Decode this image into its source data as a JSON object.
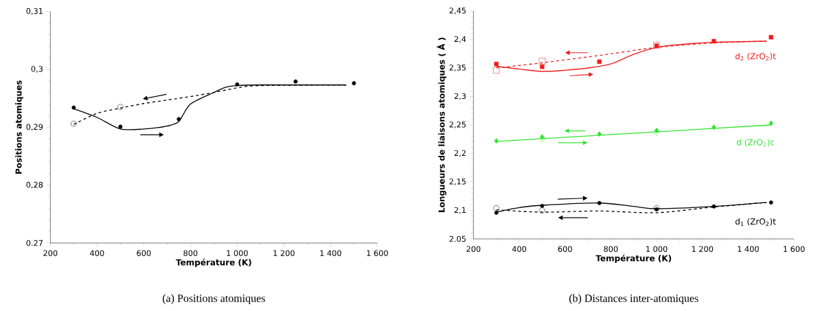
{
  "chart_data": [
    {
      "type": "line",
      "xlabel": "Température (K)",
      "ylabel": "Positions atomiques",
      "xlim": [
        200,
        1600
      ],
      "ylim": [
        0.27,
        0.31
      ],
      "xticks": [
        200,
        400,
        600,
        800,
        {
          "value": 1000,
          "label": "1 000"
        },
        {
          "value": 1200,
          "label": "1 200"
        },
        {
          "value": 1400,
          "label": "1 400"
        },
        {
          "value": 1600,
          "label": "1 600"
        }
      ],
      "yticks": [
        {
          "value": 0.27,
          "label": "0.27"
        },
        {
          "value": 0.28,
          "label": "0,28"
        },
        {
          "value": 0.29,
          "label": "0,29"
        },
        {
          "value": 0.3,
          "label": "0,3"
        },
        {
          "value": 0.31,
          "label": "0,31"
        }
      ],
      "annotations": [
        "(a) Positions atomiques"
      ],
      "series": [
        {
          "type": "scatter",
          "color": "#000000",
          "marker": "circle",
          "x": [
            300,
            500
          ],
          "values": [
            0.2906,
            0.2935
          ]
        },
        {
          "type": "scatter",
          "color": "#000000",
          "marker": "circle",
          "x": [
            300,
            500,
            750,
            1000,
            1250,
            1500
          ],
          "values": [
            0.2934,
            0.2901,
            0.2914,
            0.2974,
            0.2979,
            0.2976
          ]
        },
        {
          "color": "#000000",
          "line_style": "solid",
          "x": [
            300,
            400,
            500,
            600,
            700,
            750,
            800,
            900,
            950,
            1000,
            1100,
            1467
          ],
          "values": [
            0.2932,
            0.2917,
            0.2897,
            0.2897,
            0.2902,
            0.291,
            0.294,
            0.296,
            0.2969,
            0.2972,
            0.2973,
            0.2973
          ]
        },
        {
          "color": "#000000",
          "line_style": "dashed",
          "x": [
            300,
            400,
            500,
            600,
            700,
            800,
            900,
            1000,
            1100,
            1467
          ],
          "values": [
            0.2905,
            0.2924,
            0.2933,
            0.2941,
            0.2947,
            0.2953,
            0.296,
            0.2968,
            0.2972,
            0.2973
          ]
        }
      ]
    },
    {
      "type": "line",
      "xlabel": "Température (K)",
      "ylabel": "Longueurs de liaisons atomiques ( Å )",
      "xlim": [
        200,
        1600
      ],
      "ylim": [
        2.05,
        2.45
      ],
      "xticks": [
        200,
        400,
        600,
        800,
        {
          "value": 1000,
          "label": "1 000"
        },
        {
          "value": 1200,
          "label": "1 200"
        },
        {
          "value": 1400,
          "label": "1 400"
        },
        {
          "value": 1600,
          "label": "1 600"
        }
      ],
      "yticks": [
        {
          "value": 2.05,
          "label": "2.05"
        },
        {
          "value": 2.1,
          "label": "2,1"
        },
        {
          "value": 2.15,
          "label": "2,15"
        },
        {
          "value": 2.2,
          "label": "2,2"
        },
        {
          "value": 2.25,
          "label": "2,25"
        },
        {
          "value": 2.3,
          "label": "2,3"
        },
        {
          "value": 2.35,
          "label": "2,35"
        },
        {
          "value": 2.4,
          "label": "2,4"
        },
        {
          "value": 2.45,
          "label": "2,45"
        }
      ],
      "annotations": [
        "(b) Distances inter-atomiques"
      ],
      "series": [
        {
          "type": "scatter",
          "color": "#ee1c1c",
          "marker": "square",
          "x": [
            300,
            500,
            1000
          ],
          "values": [
            2.346,
            2.362,
            2.39
          ]
        },
        {
          "type": "scatter",
          "name": "d$_{2}$ (ZrO$_{2}$)t",
          "color": "#ee1c1c",
          "marker": "square",
          "x": [
            300,
            500,
            750,
            1000,
            1250,
            1500
          ],
          "values": [
            2.357,
            2.352,
            2.361,
            2.389,
            2.397,
            2.404
          ]
        },
        {
          "color": "#ee1c1c",
          "line_style": "solid",
          "x": [
            300,
            400,
            500,
            600,
            700,
            800,
            900,
            1000,
            1100,
            1250,
            1480
          ],
          "values": [
            2.353,
            2.348,
            2.344,
            2.346,
            2.35,
            2.357,
            2.374,
            2.386,
            2.391,
            2.395,
            2.397
          ]
        },
        {
          "color": "#ee1c1c",
          "line_style": "dashed",
          "x": [
            300,
            500,
            750,
            1000,
            1250,
            1480
          ],
          "values": [
            2.35,
            2.359,
            2.372,
            2.386,
            2.394,
            2.397
          ]
        },
        {
          "type": "scatter",
          "color": "#2ee62e",
          "marker": "diamond",
          "x": [
            500,
            1000
          ],
          "values": [
            2.226,
            2.238
          ]
        },
        {
          "type": "scatter",
          "name": "d (ZrO$_{2}$)c",
          "color": "#2ee62e",
          "marker": "diamond",
          "x": [
            300,
            500,
            750,
            1000,
            1250,
            1500
          ],
          "values": [
            2.222,
            2.229,
            2.234,
            2.24,
            2.246,
            2.253
          ]
        },
        {
          "color": "#2ee62e",
          "line_style": "solid",
          "x": [
            300,
            1500
          ],
          "values": [
            2.221,
            2.25
          ]
        },
        {
          "type": "scatter",
          "color": "#000000",
          "marker": "circle",
          "x": [
            300,
            500,
            1000
          ],
          "values": [
            2.104,
            2.1,
            2.104
          ]
        },
        {
          "type": "scatter",
          "name": "d$_{1}$ (ZrO$_{2}$)t",
          "color": "#000000",
          "marker": "circle",
          "x": [
            300,
            500,
            750,
            1000,
            1250,
            1500
          ],
          "values": [
            2.096,
            2.108,
            2.113,
            2.102,
            2.107,
            2.114
          ]
        },
        {
          "color": "#000000",
          "line_style": "solid",
          "x": [
            300,
            400,
            500,
            750,
            900,
            1000,
            1250,
            1480
          ],
          "values": [
            2.097,
            2.105,
            2.109,
            2.113,
            2.107,
            2.103,
            2.107,
            2.114
          ]
        },
        {
          "color": "#000000",
          "line_style": "dashed",
          "x": [
            300,
            500,
            750,
            1000,
            1250,
            1480
          ],
          "values": [
            2.101,
            2.097,
            2.099,
            2.096,
            2.106,
            2.114
          ]
        }
      ]
    }
  ]
}
